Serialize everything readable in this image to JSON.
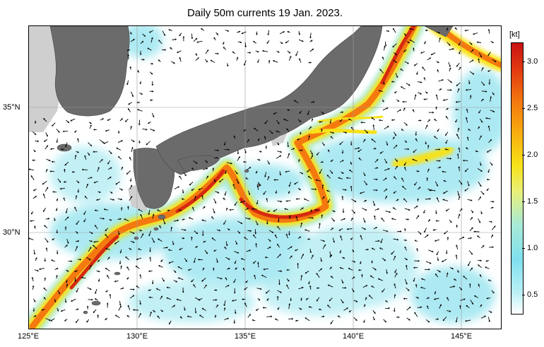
{
  "title": "Daily 50m currents 19 Jan. 2023.",
  "map": {
    "lon_labels": [
      "125°E",
      "130°E",
      "135°E",
      "140°E",
      "145°E"
    ],
    "lat_labels": [
      "35°N",
      "30°N"
    ],
    "land_color": "#6b6b6b",
    "shelf_color": "#cfcfcf",
    "arrow_color": "#000000"
  },
  "colorbar": {
    "unit": "[kt]",
    "ticks": [
      "3.0",
      "2.5",
      "2.0",
      "1.5",
      "1.0",
      "0.5"
    ],
    "colors": [
      "#ffffff",
      "#7fe0ee",
      "#f7e218",
      "#f47a10",
      "#c81414"
    ]
  }
}
